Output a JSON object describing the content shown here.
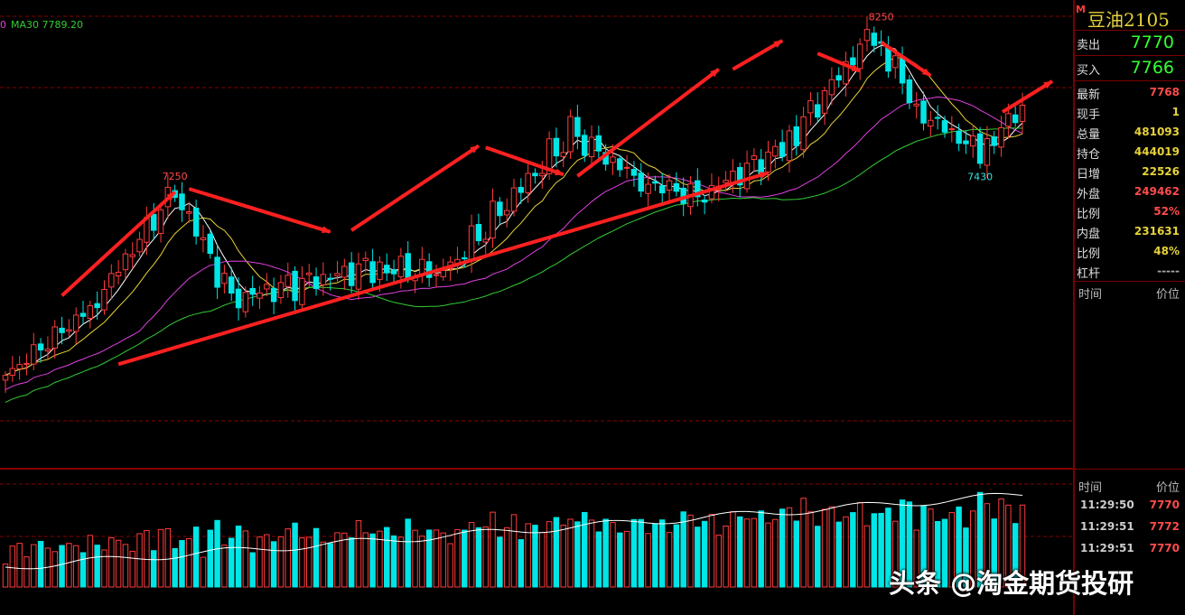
{
  "chart_data": {
    "type": "candlestick",
    "indicator_label": "MA30 7789.20",
    "indicator_prefix": "0",
    "colors": {
      "up": "#ff3b3b",
      "down": "#00e5e5",
      "ma5": "#ffffff",
      "ma10": "#e6d23a",
      "ma20": "#e040e0",
      "ma30": "#33cc33",
      "arrow": "#ff2020",
      "volume_line": "#ffffff"
    },
    "price_annotations": [
      {
        "label": "7250",
        "value": 7250,
        "index": 24,
        "position": "above"
      },
      {
        "label": "8250",
        "value": 8250,
        "index": 124,
        "position": "above"
      },
      {
        "label": "7430",
        "value": 7430,
        "index": 138,
        "position": "below"
      }
    ],
    "ohlc": [],
    "volume": []
  },
  "panel": {
    "title_marker": "M",
    "title": "豆油2105",
    "sell_label": "卖出",
    "sell_value": "7770",
    "buy_label": "买入",
    "buy_value": "7766",
    "stats": [
      {
        "label": "最新",
        "value": "7768",
        "color": "red"
      },
      {
        "label": "现手",
        "value": "1",
        "color": "yellow"
      },
      {
        "label": "总量",
        "value": "481093",
        "color": "yellow"
      },
      {
        "label": "持仓",
        "value": "444019",
        "color": "yellow"
      },
      {
        "label": "日增",
        "value": "22526",
        "color": "yellow"
      },
      {
        "label": "外盘",
        "value": "249462",
        "color": "red"
      },
      {
        "label": "比例",
        "value": "52%",
        "color": "red"
      },
      {
        "label": "内盘",
        "value": "231631",
        "color": "yellow"
      },
      {
        "label": "比例",
        "value": "48%",
        "color": "yellow"
      },
      {
        "label": "杠杆",
        "value": "-----",
        "color": "grey"
      }
    ],
    "header_time": "时间",
    "header_price": "价位",
    "ticks_header_time": "时间",
    "ticks_header_price": "价位",
    "ticks": [
      {
        "time": "11:29:50",
        "price": "7770"
      },
      {
        "time": "11:29:51",
        "price": "7772"
      },
      {
        "time": "11:29:51",
        "price": "7770"
      }
    ]
  },
  "watermark": "头条 @淘金期货投研"
}
